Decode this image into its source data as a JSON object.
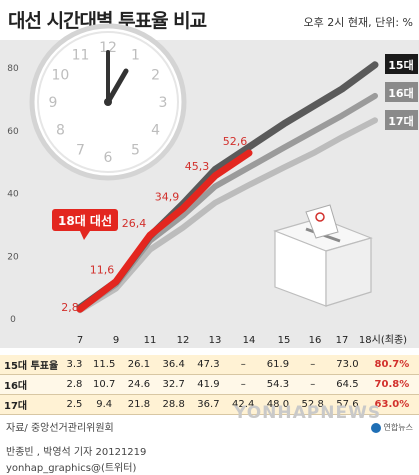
{
  "header": {
    "title": "대선 시간대별 투표율 비교",
    "subtitle": "오후 2시 현재, 단위: %"
  },
  "chart_data": {
    "type": "line",
    "title": "대선 시간대별 투표율 비교",
    "unit_note": "오후 2시 현재, 단위: %",
    "x": [
      "7",
      "9",
      "11",
      "12",
      "13",
      "14",
      "15",
      "16",
      "17",
      "18시(최종)"
    ],
    "x_positions": [
      7,
      9,
      11,
      12,
      13,
      14,
      15,
      16,
      17,
      18
    ],
    "ylim": [
      0,
      85
    ],
    "yticks": [
      0,
      20,
      40,
      60,
      80
    ],
    "grid": false,
    "series": [
      {
        "name": "15대",
        "label": "15대",
        "color": "#5a5a5a",
        "values": [
          3.3,
          11.5,
          26.1,
          36.4,
          47.3,
          null,
          61.9,
          null,
          73.0,
          80.7
        ]
      },
      {
        "name": "16대",
        "label": "16대",
        "color": "#9b9b9b",
        "values": [
          2.8,
          10.7,
          24.6,
          32.7,
          41.9,
          null,
          54.3,
          null,
          64.5,
          70.8
        ]
      },
      {
        "name": "17대",
        "label": "17대",
        "color": "#bcbcbc",
        "values": [
          2.5,
          9.4,
          21.8,
          28.8,
          36.7,
          42.4,
          48.0,
          52.8,
          57.6,
          63.0
        ]
      },
      {
        "name": "18대 대선",
        "label": "18대 대선",
        "color": "#e3261f",
        "values": [
          2.8,
          11.6,
          26.4,
          34.9,
          45.3,
          52.6,
          null,
          null,
          null,
          null
        ],
        "data_labels": [
          "2,8",
          "11,6",
          "26,4",
          "34,9",
          "45,3",
          "52,6"
        ]
      }
    ]
  },
  "table": {
    "rows": [
      {
        "label": "15대 투표율",
        "cells": [
          "3.3",
          "11.5",
          "26.1",
          "36.4",
          "47.3",
          "–",
          "61.9",
          "–",
          "73.0",
          "80.7%"
        ]
      },
      {
        "label": "16대",
        "cells": [
          "2.8",
          "10.7",
          "24.6",
          "32.7",
          "41.9",
          "–",
          "54.3",
          "–",
          "64.5",
          "70.8%"
        ]
      },
      {
        "label": "17대",
        "cells": [
          "2.5",
          "9.4",
          "21.8",
          "28.8",
          "36.7",
          "42.4",
          "48.0",
          "52.8",
          "57.6",
          "63.0%"
        ]
      }
    ]
  },
  "footer": {
    "source": "자료/ 중앙선거관리위원회",
    "byline": "반종빈 , 박영석 기자 20121219",
    "contact": "yonhap_graphics@(트위터)",
    "logo_text": "연합뉴스",
    "watermark": "YONHAPNEWS"
  }
}
